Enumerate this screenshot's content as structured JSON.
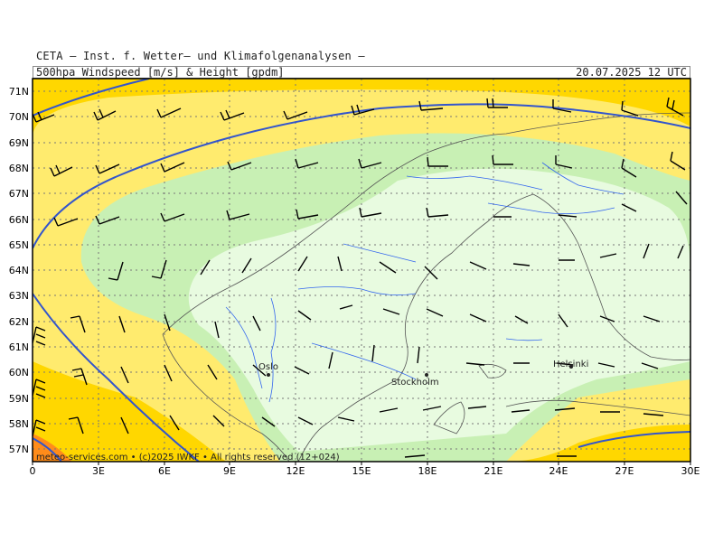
{
  "header": {
    "institute": "CETA – Inst. f. Wetter– und Klimafolgenanalysen –",
    "product": "500hpa_Windspeed_[m/s]_&_Height_[gpdm]",
    "valid_time": "20.07.2025 12 UTC"
  },
  "footer": {
    "credit": "meteo-services.com • (c)2025 IWKF • All rights reserved (12+024)"
  },
  "cities": [
    {
      "name": "Oslo",
      "lon": 10.75,
      "lat": 59.9
    },
    {
      "name": "Stockholm",
      "lon": 18.05,
      "lat": 59.33
    },
    {
      "name": "Helsinki",
      "lon": 24.9,
      "lat": 60.17
    }
  ],
  "axes": {
    "x_ticks": [
      "0",
      "3E",
      "6E",
      "9E",
      "12E",
      "15E",
      "18E",
      "21E",
      "24E",
      "27E",
      "30E"
    ],
    "y_ticks": [
      "57N",
      "58N",
      "59N",
      "60N",
      "61N",
      "62N",
      "63N",
      "64N",
      "65N",
      "66N",
      "67N",
      "68N",
      "69N",
      "70N",
      "71N"
    ],
    "lon_range": [
      0,
      30
    ],
    "lat_range": [
      56.5,
      71.5
    ]
  },
  "colors": {
    "wind_fill_strong": "#FFD700",
    "wind_fill_moderate": "#FFEB6E",
    "wind_fill_light": "#C8F0B4",
    "wind_fill_calm": "#E8FBE0",
    "wind_fill_max": "#FF8C1A",
    "height_contour": "#3355CC",
    "rivers": "#3366EE",
    "coastline": "#555555",
    "grid": "#777777"
  },
  "map": {
    "projection": "lat-lon",
    "grid": "dotted",
    "wind_barbs": "every 1.5 degrees"
  }
}
